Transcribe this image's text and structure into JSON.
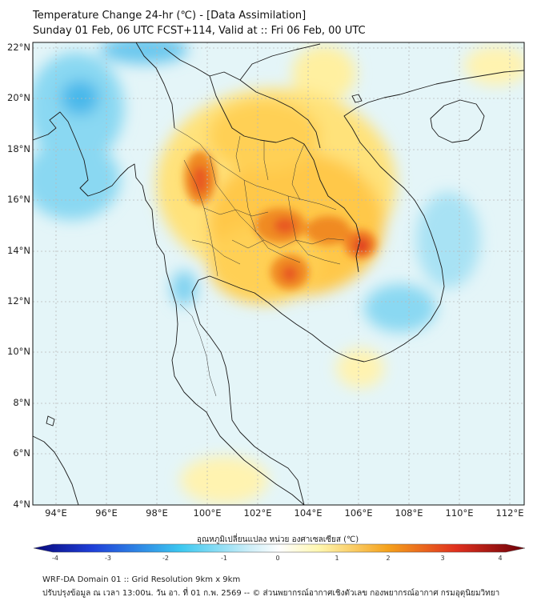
{
  "header": {
    "title": "Temperature Change 24-hr (℃) - [Data Assimilation]",
    "subtitle": "Sunday 01 Feb, 06 UTC FCST+114, Valid at :: Fri 06 Feb, 00 UTC"
  },
  "axes": {
    "lat_labels": [
      "22°N",
      "20°N",
      "18°N",
      "16°N",
      "14°N",
      "12°N",
      "10°N",
      "8°N",
      "6°N",
      "4°N"
    ],
    "lon_labels": [
      "94°E",
      "96°E",
      "98°E",
      "100°E",
      "102°E",
      "104°E",
      "106°E",
      "108°E",
      "110°E",
      "112°E"
    ]
  },
  "colorbar": {
    "title": "อุณหภูมิเปลี่ยนแปลง หน่วย องศาเซลเซียส (℃)",
    "ticks": [
      "-4",
      "-3",
      "-2",
      "-1",
      "0",
      "1",
      "2",
      "3",
      "4"
    ],
    "colors": {
      "deep_blue": "#08087a",
      "blue": "#1f3fd8",
      "cyan": "#3cc8f0",
      "pale_cyan": "#cdeef8",
      "white": "#ffffff",
      "pale_yellow": "#fff7b0",
      "orange": "#f5a21c",
      "red": "#e0301e",
      "dark_red": "#6b0008"
    }
  },
  "footer": {
    "line1": "WRF-DA Domain 01 :: Grid Resolution 9km x 9km",
    "line2": "ปรับปรุงข้อมูล ณ เวลา 13:00น. วัน อา. ที่ 01 ก.พ. 2569 -- © ส่วนพยากรณ์อากาศเชิงตัวเลข กองพยากรณ์อากาศ กรมอุตุนิยมวิทยา"
  }
}
